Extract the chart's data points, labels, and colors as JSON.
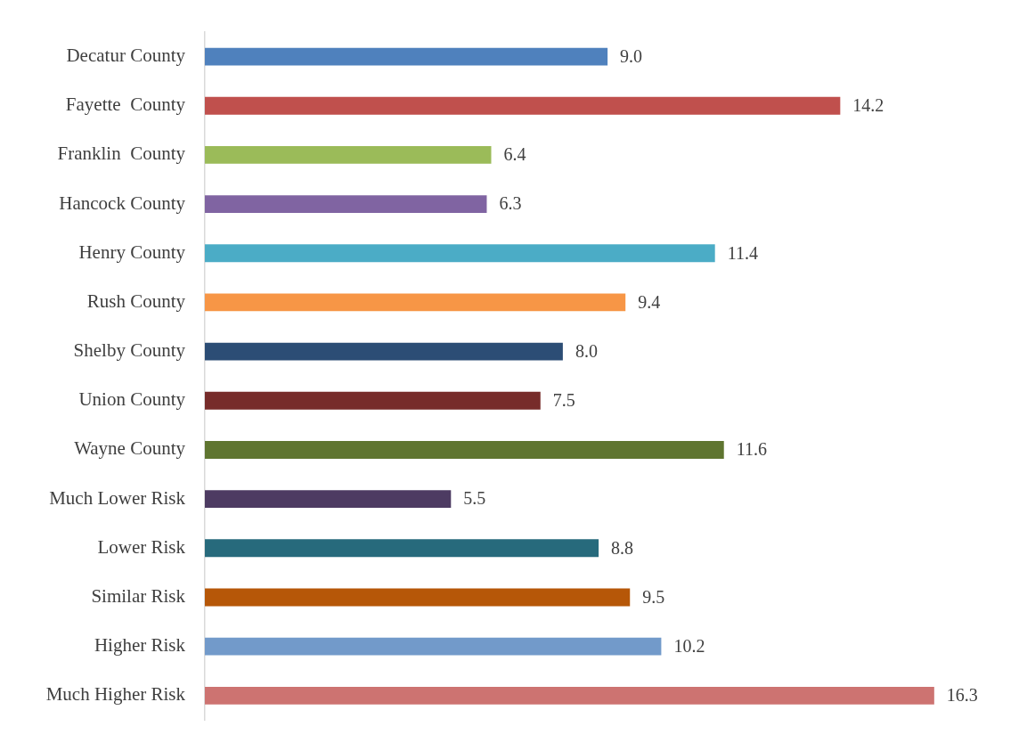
{
  "chart_data": {
    "type": "bar",
    "orientation": "horizontal",
    "legend": false,
    "value_labels": [
      "9.0",
      "14.2",
      "6.4",
      "6.3",
      "11.4",
      "9.4",
      "8.0",
      "7.5",
      "11.6",
      "5.5",
      "8.8",
      "9.5",
      "10.2",
      "16.3"
    ],
    "categories": [
      "Decatur County",
      "Fayette  County",
      "Franklin  County",
      "Hancock County",
      "Henry County",
      "Rush County",
      "Shelby County",
      "Union County",
      "Wayne County",
      "Much Lower Risk",
      "Lower Risk",
      "Similar Risk",
      "Higher Risk",
      "Much Higher Risk"
    ],
    "values": [
      9.0,
      14.2,
      6.4,
      6.3,
      11.4,
      9.4,
      8.0,
      7.5,
      11.6,
      5.5,
      8.8,
      9.5,
      10.2,
      16.3
    ],
    "colors": [
      "#4f81bd",
      "#c0504d",
      "#9bbb59",
      "#8064a2",
      "#4bacc6",
      "#f79646",
      "#2c4d75",
      "#772c2a",
      "#5f7530",
      "#4d3b62",
      "#276a7c",
      "#b65708",
      "#729aca",
      "#cd7371"
    ]
  }
}
